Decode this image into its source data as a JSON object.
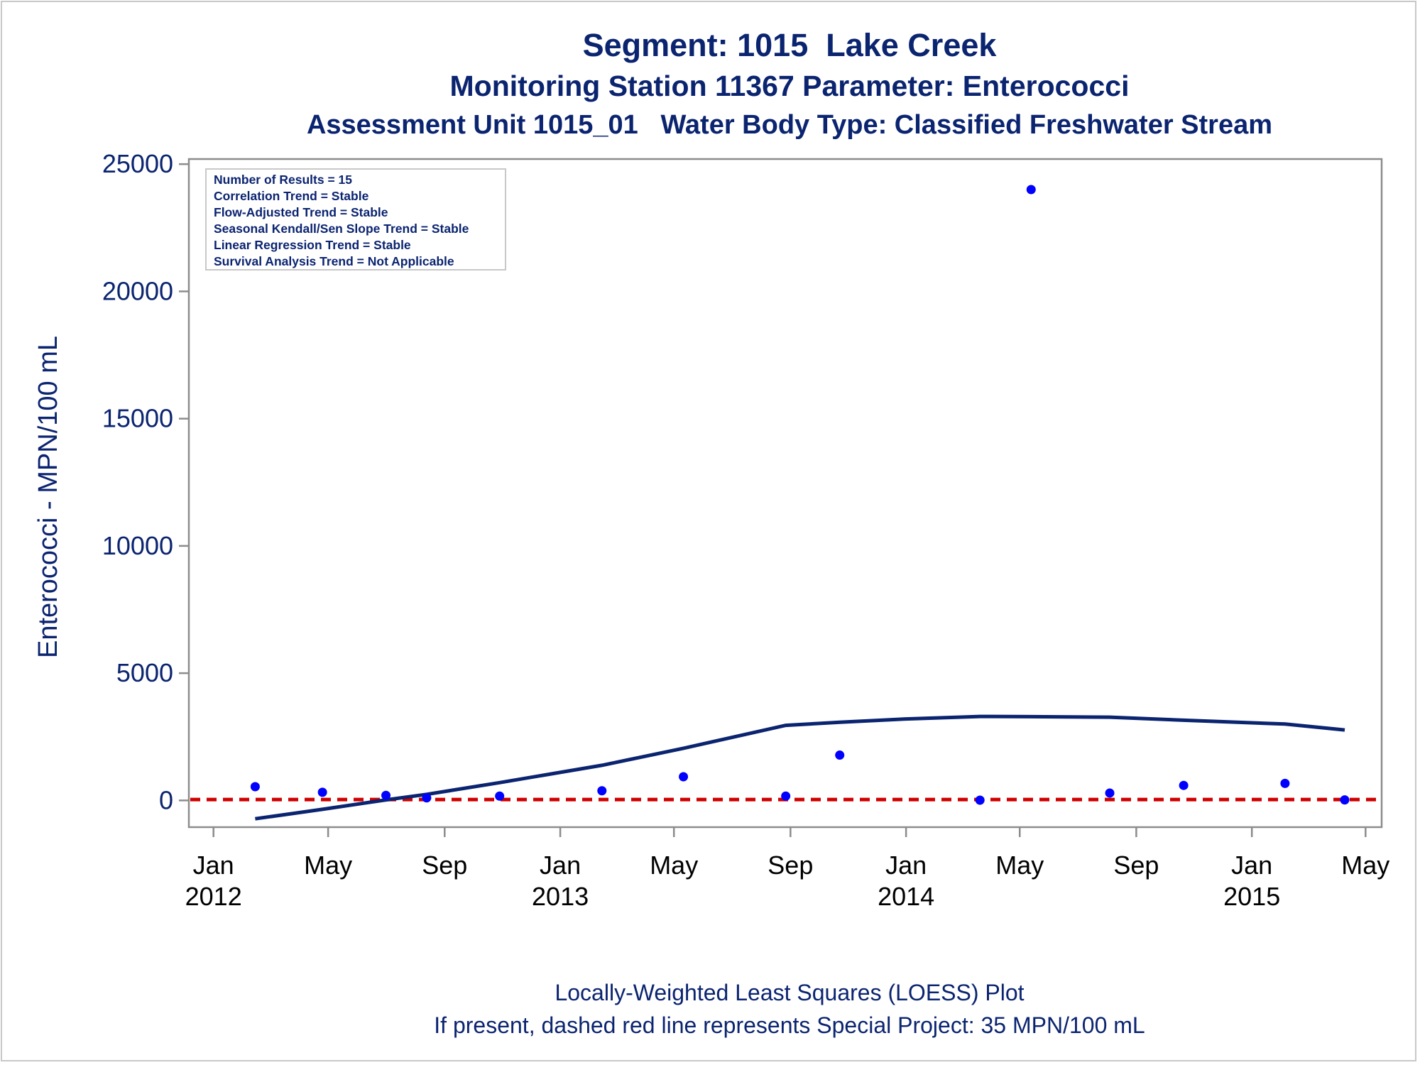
{
  "title": "Segment: 1015  Lake Creek",
  "subtitle": "Monitoring Station 11367 Parameter: Enterococci",
  "subtitle2": "Assessment Unit 1015_01   Water Body Type: Classified Freshwater Stream",
  "footnote1": "Locally-Weighted Least Squares (LOESS) Plot",
  "footnote2": "If present, dashed red line represents Special Project: 35 MPN/100 mL",
  "stats_box": [
    "Number of Results = 15",
    "Correlation Trend = Stable",
    "Flow-Adjusted Trend = Stable",
    "Seasonal Kendall/Sen Slope Trend = Stable",
    "Linear Regression Trend = Stable",
    "Survival Analysis Trend = Not Applicable"
  ],
  "colors": {
    "title": "#0b2470",
    "points": "#0000ff",
    "loess": "#0b2470",
    "criterion": "#d00000",
    "axis": "#8c8c8c"
  },
  "chart_data": {
    "type": "scatter",
    "ylabel": "Enterococci - MPN/100 mL",
    "ylim": [
      -1050,
      25200
    ],
    "yticks": [
      0,
      5000,
      10000,
      15000,
      20000,
      25000
    ],
    "xlim": [
      "2011-12-06",
      "2015-05-18"
    ],
    "xticks": [
      {
        "date": "2012-01-01",
        "label": "Jan",
        "year": "2012"
      },
      {
        "date": "2012-05-01",
        "label": "May",
        "year": ""
      },
      {
        "date": "2012-09-01",
        "label": "Sep",
        "year": ""
      },
      {
        "date": "2013-01-01",
        "label": "Jan",
        "year": "2013"
      },
      {
        "date": "2013-05-01",
        "label": "May",
        "year": ""
      },
      {
        "date": "2013-09-01",
        "label": "Sep",
        "year": ""
      },
      {
        "date": "2014-01-01",
        "label": "Jan",
        "year": "2014"
      },
      {
        "date": "2014-05-01",
        "label": "May",
        "year": ""
      },
      {
        "date": "2014-09-01",
        "label": "Sep",
        "year": ""
      },
      {
        "date": "2015-01-01",
        "label": "Jan",
        "year": "2015"
      },
      {
        "date": "2015-05-01",
        "label": "May",
        "year": ""
      }
    ],
    "points": [
      {
        "date": "2012-02-14",
        "value": 540
      },
      {
        "date": "2012-04-25",
        "value": 320
      },
      {
        "date": "2012-07-01",
        "value": 200
      },
      {
        "date": "2012-08-13",
        "value": 100
      },
      {
        "date": "2012-10-29",
        "value": 170
      },
      {
        "date": "2013-02-14",
        "value": 380
      },
      {
        "date": "2013-05-11",
        "value": 930
      },
      {
        "date": "2013-08-27",
        "value": 170
      },
      {
        "date": "2013-10-23",
        "value": 1780
      },
      {
        "date": "2014-03-20",
        "value": 10
      },
      {
        "date": "2014-05-13",
        "value": 24000
      },
      {
        "date": "2014-08-04",
        "value": 290
      },
      {
        "date": "2014-10-21",
        "value": 590
      },
      {
        "date": "2015-02-05",
        "value": 670
      },
      {
        "date": "2015-04-09",
        "value": 20
      }
    ],
    "loess": [
      {
        "date": "2012-02-14",
        "value": -720
      },
      {
        "date": "2012-04-25",
        "value": -350
      },
      {
        "date": "2012-07-01",
        "value": 20
      },
      {
        "date": "2012-08-13",
        "value": 240
      },
      {
        "date": "2012-10-29",
        "value": 700
      },
      {
        "date": "2013-02-14",
        "value": 1380
      },
      {
        "date": "2013-05-11",
        "value": 2050
      },
      {
        "date": "2013-08-27",
        "value": 2950
      },
      {
        "date": "2013-10-23",
        "value": 3070
      },
      {
        "date": "2014-01-01",
        "value": 3200
      },
      {
        "date": "2014-03-20",
        "value": 3300
      },
      {
        "date": "2014-05-13",
        "value": 3290
      },
      {
        "date": "2014-08-04",
        "value": 3270
      },
      {
        "date": "2014-10-21",
        "value": 3150
      },
      {
        "date": "2015-02-05",
        "value": 3000
      },
      {
        "date": "2015-04-09",
        "value": 2770
      }
    ],
    "reference_line": {
      "value": 35
    }
  }
}
